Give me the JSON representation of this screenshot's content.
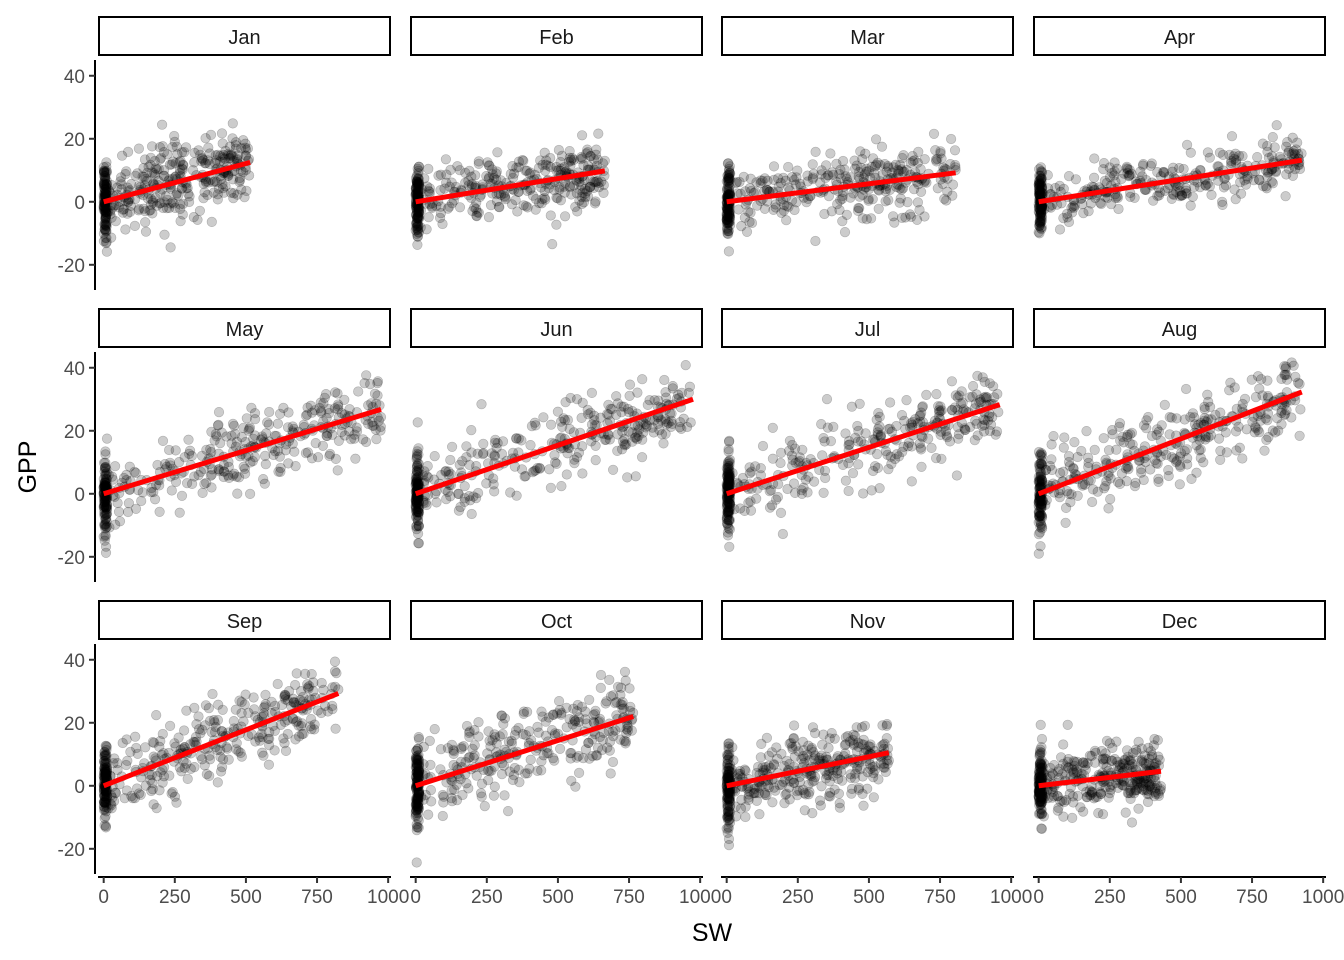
{
  "chart_data": {
    "type": "scatter",
    "xlabel": "SW",
    "ylabel": "GPP",
    "x_ticks": [
      0,
      250,
      500,
      750,
      1000
    ],
    "x_tick_labels": [
      "0",
      "250",
      "500",
      "750",
      "1000"
    ],
    "y_ticks": [
      -20,
      0,
      20,
      40
    ],
    "y_tick_labels": [
      "-20",
      "0",
      "20",
      "40"
    ],
    "xlim": [
      -20,
      1010
    ],
    "ylim": [
      -28,
      45
    ],
    "grid": false,
    "legend": "none",
    "point_color": "#000000",
    "point_opacity": 0.2,
    "fit_color": "#ff0000",
    "facets": [
      {
        "label": "Jan",
        "sw_max": 515,
        "fit": {
          "x": [
            0,
            515
          ],
          "y": [
            0,
            12.5
          ]
        },
        "cloud": {
          "y_center": 4,
          "spread": 7
        }
      },
      {
        "label": "Feb",
        "sw_max": 665,
        "fit": {
          "x": [
            0,
            665
          ],
          "y": [
            0,
            9.8
          ]
        },
        "cloud": {
          "y_center": 3,
          "spread": 6
        }
      },
      {
        "label": "Mar",
        "sw_max": 805,
        "fit": {
          "x": [
            0,
            805
          ],
          "y": [
            0,
            9.2
          ]
        },
        "cloud": {
          "y_center": 2,
          "spread": 6
        }
      },
      {
        "label": "Apr",
        "sw_max": 925,
        "fit": {
          "x": [
            0,
            925
          ],
          "y": [
            0,
            13.2
          ]
        },
        "cloud": {
          "y_center": 3,
          "spread": 5
        }
      },
      {
        "label": "May",
        "sw_max": 975,
        "fit": {
          "x": [
            0,
            975
          ],
          "y": [
            0,
            26.8
          ]
        },
        "cloud": {
          "y_center": 8,
          "spread": 7
        }
      },
      {
        "label": "Jun",
        "sw_max": 975,
        "fit": {
          "x": [
            0,
            975
          ],
          "y": [
            0,
            30.0
          ]
        },
        "cloud": {
          "y_center": 10,
          "spread": 7
        }
      },
      {
        "label": "Jul",
        "sw_max": 960,
        "fit": {
          "x": [
            0,
            960
          ],
          "y": [
            0,
            28.3
          ]
        },
        "cloud": {
          "y_center": 10,
          "spread": 7
        }
      },
      {
        "label": "Aug",
        "sw_max": 925,
        "fit": {
          "x": [
            0,
            925
          ],
          "y": [
            0,
            32.3
          ]
        },
        "cloud": {
          "y_center": 9,
          "spread": 7
        }
      },
      {
        "label": "Sep",
        "sw_max": 825,
        "fit": {
          "x": [
            0,
            825
          ],
          "y": [
            0,
            29.3
          ]
        },
        "cloud": {
          "y_center": 8,
          "spread": 7
        }
      },
      {
        "label": "Oct",
        "sw_max": 765,
        "fit": {
          "x": [
            0,
            765
          ],
          "y": [
            0,
            22.0
          ]
        },
        "cloud": {
          "y_center": 8,
          "spread": 8
        }
      },
      {
        "label": "Nov",
        "sw_max": 570,
        "fit": {
          "x": [
            0,
            570
          ],
          "y": [
            0,
            10.5
          ]
        },
        "cloud": {
          "y_center": 4,
          "spread": 7
        }
      },
      {
        "label": "Dec",
        "sw_max": 430,
        "fit": {
          "x": [
            0,
            430
          ],
          "y": [
            0,
            4.6
          ]
        },
        "cloud": {
          "y_center": 2,
          "spread": 6
        }
      }
    ]
  }
}
